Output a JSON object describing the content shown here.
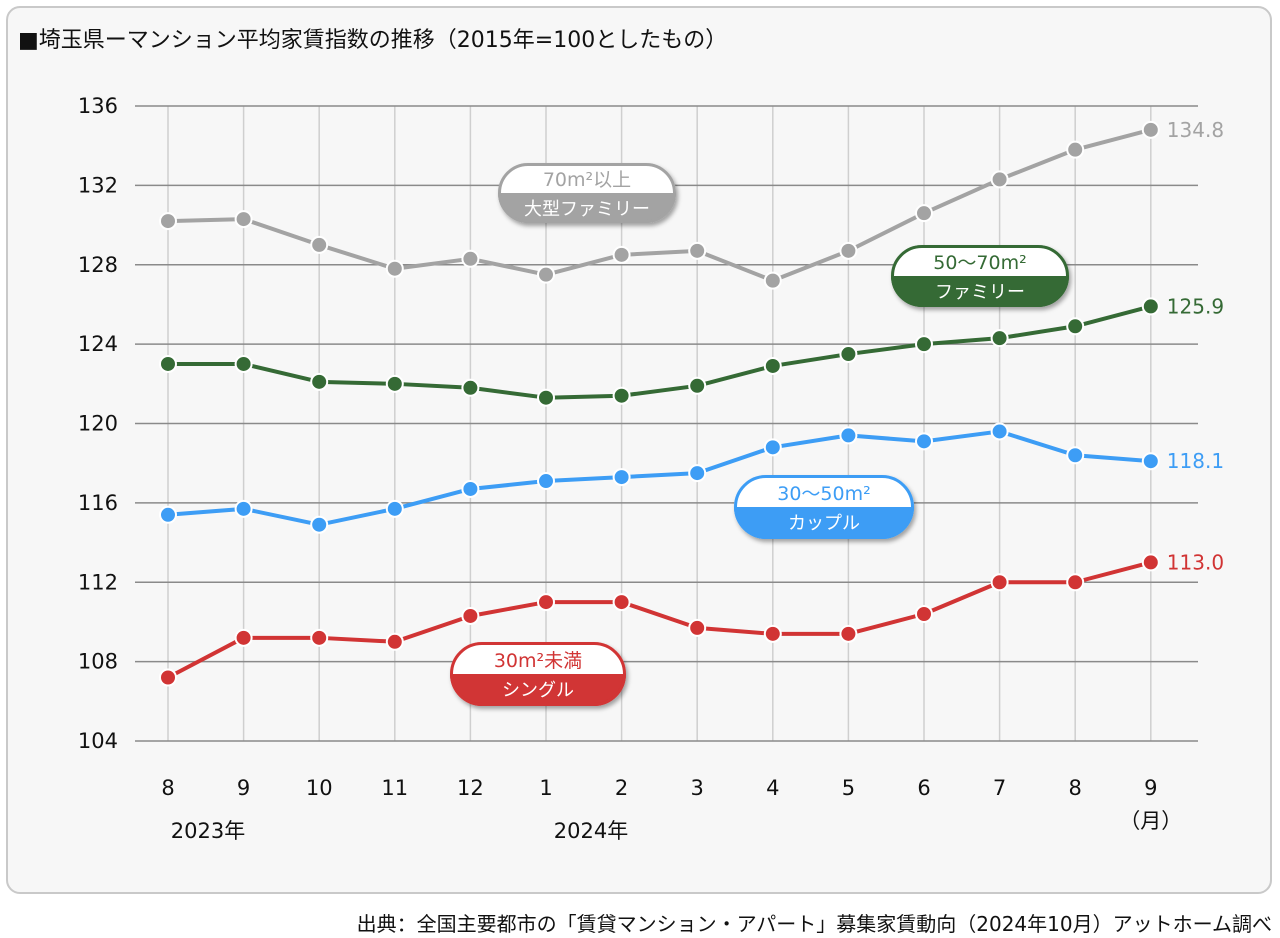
{
  "header": {
    "title": "■埼玉県ーマンション平均家賃指数の推移（2015年=100としたもの）"
  },
  "footer": {
    "source": "出典：全国主要都市の「賃貸マンション・アパート」募集家賃動向（2024年10月）アットホーム調べ"
  },
  "chart_data": {
    "type": "line",
    "title": "■埼玉県ーマンション平均家賃指数の推移（2015年=100としたもの）",
    "categories": [
      "8",
      "9",
      "10",
      "11",
      "12",
      "1",
      "2",
      "3",
      "4",
      "5",
      "6",
      "7",
      "8",
      "9"
    ],
    "year_labels": [
      {
        "at_index": 0,
        "text": "2023年"
      },
      {
        "at_index": 5,
        "text": "2024年"
      }
    ],
    "x_unit_label": "（月）",
    "ylim": [
      104,
      136
    ],
    "yticks": [
      104,
      108,
      112,
      116,
      120,
      124,
      128,
      132,
      136
    ],
    "grid": true,
    "series": [
      {
        "name": "70m²以上 大型ファミリー",
        "badge_top": "70m²以上",
        "badge_bottom": "大型ファミリー",
        "color": "#a3a3a3",
        "values": [
          130.2,
          130.3,
          129.0,
          127.8,
          128.3,
          127.5,
          128.5,
          128.7,
          127.2,
          128.7,
          130.6,
          132.3,
          133.8,
          134.8
        ],
        "end_label": "134.8"
      },
      {
        "name": "50〜70m² ファミリー",
        "badge_top": "50〜70m²",
        "badge_bottom": "ファミリー",
        "color": "#356a35",
        "values": [
          123.0,
          123.0,
          122.1,
          122.0,
          121.8,
          121.3,
          121.4,
          121.9,
          122.9,
          123.5,
          124.0,
          124.3,
          124.9,
          125.9
        ],
        "end_label": "125.9"
      },
      {
        "name": "30〜50m² カップル",
        "badge_top": "30〜50m²",
        "badge_bottom": "カップル",
        "color": "#3d9df5",
        "values": [
          115.4,
          115.7,
          114.9,
          115.7,
          116.7,
          117.1,
          117.3,
          117.5,
          118.8,
          119.4,
          119.1,
          119.6,
          118.4,
          118.1
        ],
        "end_label": "118.1"
      },
      {
        "name": "30m²未満 シングル",
        "badge_top": "30m²未満",
        "badge_bottom": "シングル",
        "color": "#d13434",
        "values": [
          107.2,
          109.2,
          109.2,
          109.0,
          110.3,
          111.0,
          111.0,
          109.7,
          109.4,
          109.4,
          110.4,
          112.0,
          112.0,
          113.0
        ],
        "end_label": "113.0"
      }
    ]
  }
}
